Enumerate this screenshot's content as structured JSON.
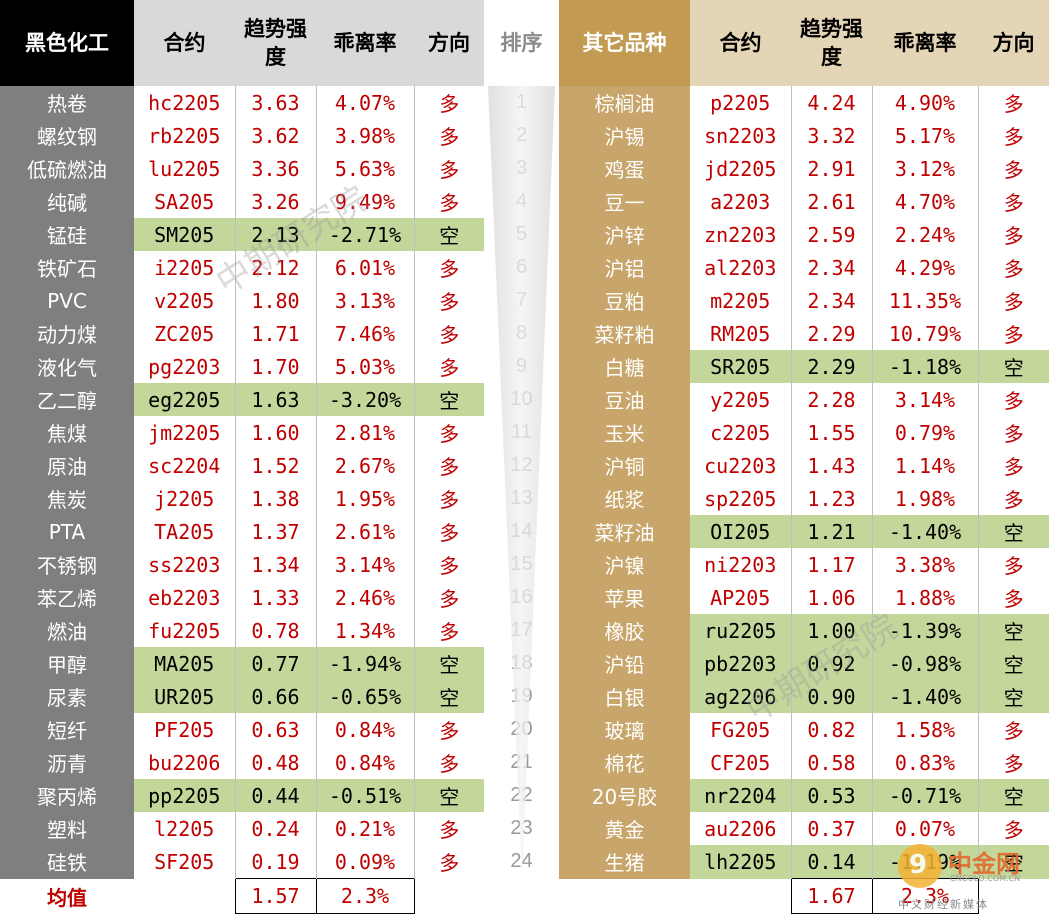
{
  "headers": {
    "left_category": "黑色化工",
    "contract": "合约",
    "trend": "趋势强度",
    "deviation": "乖离率",
    "direction": "方向",
    "rank": "排序",
    "right_category": "其它品种"
  },
  "left_rows": [
    {
      "name": "热卷",
      "contract": "hc2205",
      "trend": "3.63",
      "deviation": "4.07%",
      "direction": "多",
      "short": false
    },
    {
      "name": "螺纹钢",
      "contract": "rb2205",
      "trend": "3.62",
      "deviation": "3.98%",
      "direction": "多",
      "short": false
    },
    {
      "name": "低硫燃油",
      "contract": "lu2205",
      "trend": "3.36",
      "deviation": "5.63%",
      "direction": "多",
      "short": false
    },
    {
      "name": "纯碱",
      "contract": "SA205",
      "trend": "3.26",
      "deviation": "9.49%",
      "direction": "多",
      "short": false
    },
    {
      "name": "锰硅",
      "contract": "SM205",
      "trend": "2.13",
      "deviation": "-2.71%",
      "direction": "空",
      "short": true
    },
    {
      "name": "铁矿石",
      "contract": "i2205",
      "trend": "2.12",
      "deviation": "6.01%",
      "direction": "多",
      "short": false
    },
    {
      "name": "PVC",
      "contract": "v2205",
      "trend": "1.80",
      "deviation": "3.13%",
      "direction": "多",
      "short": false
    },
    {
      "name": "动力煤",
      "contract": "ZC205",
      "trend": "1.71",
      "deviation": "7.46%",
      "direction": "多",
      "short": false
    },
    {
      "name": "液化气",
      "contract": "pg2203",
      "trend": "1.70",
      "deviation": "5.03%",
      "direction": "多",
      "short": false
    },
    {
      "name": "乙二醇",
      "contract": "eg2205",
      "trend": "1.63",
      "deviation": "-3.20%",
      "direction": "空",
      "short": true
    },
    {
      "name": "焦煤",
      "contract": "jm2205",
      "trend": "1.60",
      "deviation": "2.81%",
      "direction": "多",
      "short": false
    },
    {
      "name": "原油",
      "contract": "sc2204",
      "trend": "1.52",
      "deviation": "2.67%",
      "direction": "多",
      "short": false
    },
    {
      "name": "焦炭",
      "contract": "j2205",
      "trend": "1.38",
      "deviation": "1.95%",
      "direction": "多",
      "short": false
    },
    {
      "name": "PTA",
      "contract": "TA205",
      "trend": "1.37",
      "deviation": "2.61%",
      "direction": "多",
      "short": false
    },
    {
      "name": "不锈钢",
      "contract": "ss2203",
      "trend": "1.34",
      "deviation": "3.14%",
      "direction": "多",
      "short": false
    },
    {
      "name": "苯乙烯",
      "contract": "eb2203",
      "trend": "1.33",
      "deviation": "2.46%",
      "direction": "多",
      "short": false
    },
    {
      "name": "燃油",
      "contract": "fu2205",
      "trend": "0.78",
      "deviation": "1.34%",
      "direction": "多",
      "short": false
    },
    {
      "name": "甲醇",
      "contract": "MA205",
      "trend": "0.77",
      "deviation": "-1.94%",
      "direction": "空",
      "short": true
    },
    {
      "name": "尿素",
      "contract": "UR205",
      "trend": "0.66",
      "deviation": "-0.65%",
      "direction": "空",
      "short": true
    },
    {
      "name": "短纤",
      "contract": "PF205",
      "trend": "0.63",
      "deviation": "0.84%",
      "direction": "多",
      "short": false
    },
    {
      "name": "沥青",
      "contract": "bu2206",
      "trend": "0.48",
      "deviation": "0.84%",
      "direction": "多",
      "short": false
    },
    {
      "name": "聚丙烯",
      "contract": "pp2205",
      "trend": "0.44",
      "deviation": "-0.51%",
      "direction": "空",
      "short": true
    },
    {
      "name": "塑料",
      "contract": "l2205",
      "trend": "0.24",
      "deviation": "0.21%",
      "direction": "多",
      "short": false
    },
    {
      "name": "硅铁",
      "contract": "SF205",
      "trend": "0.19",
      "deviation": "0.09%",
      "direction": "多",
      "short": false
    }
  ],
  "right_rows": [
    {
      "name": "棕榈油",
      "contract": "p2205",
      "trend": "4.24",
      "deviation": "4.90%",
      "direction": "多",
      "short": false
    },
    {
      "name": "沪锡",
      "contract": "sn2203",
      "trend": "3.32",
      "deviation": "5.17%",
      "direction": "多",
      "short": false
    },
    {
      "name": "鸡蛋",
      "contract": "jd2205",
      "trend": "2.91",
      "deviation": "3.12%",
      "direction": "多",
      "short": false
    },
    {
      "name": "豆一",
      "contract": "a2203",
      "trend": "2.61",
      "deviation": "4.70%",
      "direction": "多",
      "short": false
    },
    {
      "name": "沪锌",
      "contract": "zn2203",
      "trend": "2.59",
      "deviation": "2.24%",
      "direction": "多",
      "short": false
    },
    {
      "name": "沪铝",
      "contract": "al2203",
      "trend": "2.34",
      "deviation": "4.29%",
      "direction": "多",
      "short": false
    },
    {
      "name": "豆粕",
      "contract": "m2205",
      "trend": "2.34",
      "deviation": "11.35%",
      "direction": "多",
      "short": false
    },
    {
      "name": "菜籽粕",
      "contract": "RM205",
      "trend": "2.29",
      "deviation": "10.79%",
      "direction": "多",
      "short": false
    },
    {
      "name": "白糖",
      "contract": "SR205",
      "trend": "2.29",
      "deviation": "-1.18%",
      "direction": "空",
      "short": true
    },
    {
      "name": "豆油",
      "contract": "y2205",
      "trend": "2.28",
      "deviation": "3.14%",
      "direction": "多",
      "short": false
    },
    {
      "name": "玉米",
      "contract": "c2205",
      "trend": "1.55",
      "deviation": "0.79%",
      "direction": "多",
      "short": false
    },
    {
      "name": "沪铜",
      "contract": "cu2203",
      "trend": "1.43",
      "deviation": "1.14%",
      "direction": "多",
      "short": false
    },
    {
      "name": "纸浆",
      "contract": "sp2205",
      "trend": "1.23",
      "deviation": "1.98%",
      "direction": "多",
      "short": false
    },
    {
      "name": "菜籽油",
      "contract": "OI205",
      "trend": "1.21",
      "deviation": "-1.40%",
      "direction": "空",
      "short": true
    },
    {
      "name": "沪镍",
      "contract": "ni2203",
      "trend": "1.17",
      "deviation": "3.38%",
      "direction": "多",
      "short": false
    },
    {
      "name": "苹果",
      "contract": "AP205",
      "trend": "1.06",
      "deviation": "1.88%",
      "direction": "多",
      "short": false
    },
    {
      "name": "橡胶",
      "contract": "ru2205",
      "trend": "1.00",
      "deviation": "-1.39%",
      "direction": "空",
      "short": true
    },
    {
      "name": "沪铅",
      "contract": "pb2203",
      "trend": "0.92",
      "deviation": "-0.98%",
      "direction": "空",
      "short": true
    },
    {
      "name": "白银",
      "contract": "ag2206",
      "trend": "0.90",
      "deviation": "-1.40%",
      "direction": "空",
      "short": true
    },
    {
      "name": "玻璃",
      "contract": "FG205",
      "trend": "0.82",
      "deviation": "1.58%",
      "direction": "多",
      "short": false
    },
    {
      "name": "棉花",
      "contract": "CF205",
      "trend": "0.58",
      "deviation": "0.83%",
      "direction": "多",
      "short": false
    },
    {
      "name": "20号胶",
      "contract": "nr2204",
      "trend": "0.53",
      "deviation": "-0.71%",
      "direction": "空",
      "short": true
    },
    {
      "name": "黄金",
      "contract": "au2206",
      "trend": "0.37",
      "deviation": "0.07%",
      "direction": "多",
      "short": false
    },
    {
      "name": "生猪",
      "contract": "lh2205",
      "trend": "0.14",
      "deviation": "-1.19%",
      "direction": "空",
      "short": true
    }
  ],
  "ranks": [
    "1",
    "2",
    "3",
    "4",
    "5",
    "6",
    "7",
    "8",
    "9",
    "10",
    "11",
    "12",
    "13",
    "14",
    "15",
    "16",
    "17",
    "18",
    "19",
    "20",
    "21",
    "22",
    "23",
    "24"
  ],
  "average": {
    "label": "均值",
    "left_trend": "1.57",
    "left_deviation": "2.3%",
    "right_trend": "1.67",
    "right_deviation": "2.3%"
  },
  "watermark": "中期研究院",
  "logo": {
    "name": "中金网",
    "domain": "CNGOLD.COM.CN",
    "tagline": "中文财经新媒体"
  },
  "colors": {
    "long": "#c00000",
    "short_highlight": "#c4d79b",
    "left_category_bg": "#7f7f7f",
    "right_category_bg": "#c8a56a",
    "left_header_bg": "#000000",
    "right_header_bg": "#c39a52"
  }
}
